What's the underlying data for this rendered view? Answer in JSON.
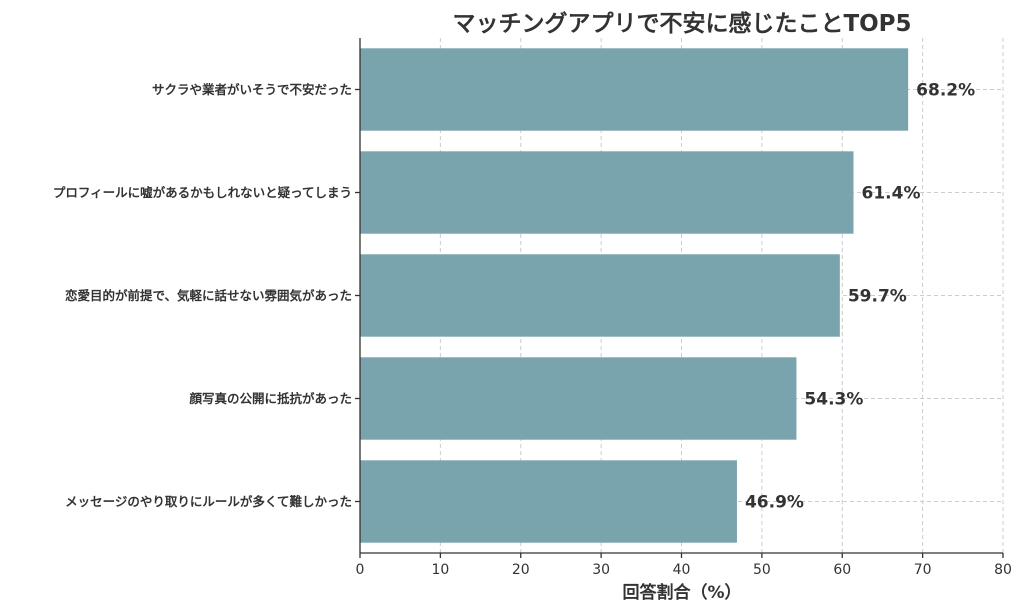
{
  "chart_data": {
    "type": "bar",
    "orientation": "horizontal",
    "title": "マッチングアプリで不安に感じたことTOP5",
    "xlabel": "回答割合（%）",
    "ylabel": "",
    "xlim": [
      0,
      80
    ],
    "xticks": [
      0,
      10,
      20,
      30,
      40,
      50,
      60,
      70,
      80
    ],
    "grid": true,
    "bar_color": "#79A4AD",
    "categories": [
      "サクラや業者がいそうで不安だった",
      "プロフィールに嘘があるかもしれないと疑ってしまう",
      "恋愛目的が前提で、気軽に話せない雰囲気があった",
      "顔写真の公開に抵抗があった",
      "メッセージのやり取りにルールが多くて難しかった"
    ],
    "values": [
      68.2,
      61.4,
      59.7,
      54.3,
      46.9
    ],
    "value_labels": [
      "68.2%",
      "61.4%",
      "59.7%",
      "54.3%",
      "46.9%"
    ]
  }
}
